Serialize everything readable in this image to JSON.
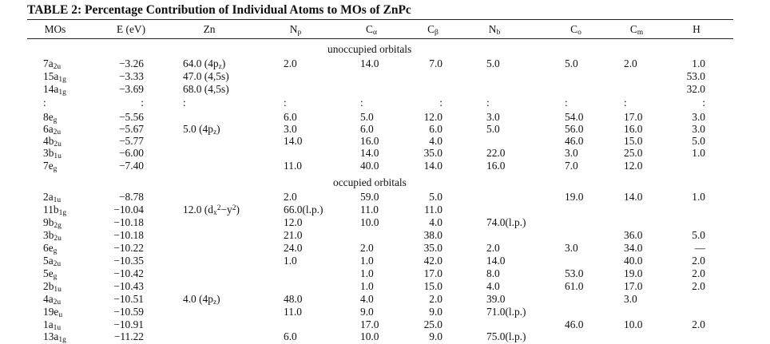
{
  "table": {
    "title": "TABLE 2: Percentage Contribution of Individual Atoms to MOs of ZnPc",
    "headers": [
      {
        "base": "MOs"
      },
      {
        "base": "E (eV)"
      },
      {
        "base": "Zn"
      },
      {
        "base": "N",
        "sub": "p"
      },
      {
        "base": "C",
        "sub": "α"
      },
      {
        "base": "C",
        "sub": "β"
      },
      {
        "base": "N",
        "sub": "b"
      },
      {
        "base": "C",
        "sub": "o"
      },
      {
        "base": "C",
        "sub": "m"
      },
      {
        "base": "H"
      }
    ],
    "sections": {
      "unoccupied": "unoccupied orbitals",
      "occupied": "occupied orbitals"
    },
    "rows": [
      {
        "mo": {
          "base": "7a",
          "sub": "2u"
        },
        "e": "−3.26",
        "zn": "64.0 (4p",
        "zn_sub": "z",
        "zn_tail": ")",
        "np": "2.0",
        "ca": "14.0",
        "cb": "7.0",
        "nb": "5.0",
        "co": "5.0",
        "cm": "2.0",
        "h": "1.0"
      },
      {
        "mo": {
          "base": "15a",
          "sub": "1g"
        },
        "e": "−3.33",
        "zn": "47.0 (4,5s)",
        "h": "53.0"
      },
      {
        "mo": {
          "base": "14a",
          "sub": "1g"
        },
        "e": "−3.69",
        "zn": "68.0 (4,5s)",
        "h": "32.0"
      },
      {
        "mo": {
          "base": ":"
        },
        "e": ":",
        "zn": ":",
        "np": ":",
        "ca": ":",
        "cb": ":",
        "nb": ":",
        "co": ":",
        "cm": ":",
        "h": ":"
      },
      {
        "mo": {
          "base": "8e",
          "sub": "g"
        },
        "e": "−5.56",
        "np": "6.0",
        "ca": "5.0",
        "cb": "12.0",
        "nb": "3.0",
        "co": "54.0",
        "cm": "17.0",
        "h": "3.0"
      },
      {
        "mo": {
          "base": "6a",
          "sub": "2u"
        },
        "e": "−5.67",
        "zn": "5.0 (4p",
        "zn_sub": "z",
        "zn_tail": ")",
        "np": "3.0",
        "ca": "6.0",
        "cb": "6.0",
        "nb": "5.0",
        "co": "56.0",
        "cm": "16.0",
        "h": "3.0"
      },
      {
        "mo": {
          "base": "4b",
          "sub": "2u"
        },
        "e": "−5.77",
        "np": "14.0",
        "ca": "16.0",
        "cb": "4.0",
        "co": "46.0",
        "cm": "15.0",
        "h": "5.0"
      },
      {
        "mo": {
          "base": "3b",
          "sub": "1u"
        },
        "e": "−6.00",
        "ca": "14.0",
        "cb": "35.0",
        "nb": "22.0",
        "co": "3.0",
        "cm": "25.0",
        "h": "1.0"
      },
      {
        "mo": {
          "base": "7e",
          "sub": "g"
        },
        "e": "−7.40",
        "np": "11.0",
        "ca": "40.0",
        "cb": "14.0",
        "nb": "16.0",
        "co": "7.0",
        "cm": "12.0"
      },
      {
        "mo": {
          "base": "2a",
          "sub": "1u"
        },
        "e": "−8.78",
        "np": "2.0",
        "ca": "59.0",
        "cb": "5.0",
        "co": "19.0",
        "cm": "14.0",
        "h": "1.0"
      },
      {
        "mo": {
          "base": "11b",
          "sub": "1g"
        },
        "e": "−10.04",
        "zn": "12.0 (d",
        "zn_sub": "x",
        "zn_sup": "2",
        "zn_mid": "−y",
        "zn_sup2": "2",
        "zn_tail": ")",
        "np": "66.0(l.p.)",
        "ca": "11.0",
        "cb": "11.0"
      },
      {
        "mo": {
          "base": "9b",
          "sub": "2g"
        },
        "e": "−10.18",
        "np": "12.0",
        "ca": "10.0",
        "cb": "4.0",
        "nb": "74.0(l.p.)"
      },
      {
        "mo": {
          "base": "3b",
          "sub": "2u"
        },
        "e": "−10.18",
        "np": "21.0",
        "cb": "38.0",
        "cm": "36.0",
        "h": "5.0"
      },
      {
        "mo": {
          "base": "6e",
          "sub": "g"
        },
        "e": "−10.22",
        "np": "24.0",
        "ca": "2.0",
        "cb": "35.0",
        "nb": "2.0",
        "co": "3.0",
        "cm": "34.0",
        "h": "—"
      },
      {
        "mo": {
          "base": "5a",
          "sub": "2u"
        },
        "e": "−10.35",
        "np": "1.0",
        "ca": "1.0",
        "cb": "42.0",
        "nb": "14.0",
        "cm": "40.0",
        "h": "2.0"
      },
      {
        "mo": {
          "base": "5e",
          "sub": "g"
        },
        "e": "−10.42",
        "ca": "1.0",
        "cb": "17.0",
        "nb": "8.0",
        "co": "53.0",
        "cm": "19.0",
        "h": "2.0"
      },
      {
        "mo": {
          "base": "2b",
          "sub": "1u"
        },
        "e": "−10.43",
        "ca": "1.0",
        "cb": "15.0",
        "nb": "4.0",
        "co": "61.0",
        "cm": "17.0",
        "h": "2.0"
      },
      {
        "mo": {
          "base": "4a",
          "sub": "2u"
        },
        "e": "−10.51",
        "zn": "4.0 (4p",
        "zn_sub": "z",
        "zn_tail": ")",
        "np": "48.0",
        "ca": "4.0",
        "cb": "2.0",
        "nb": "39.0",
        "cm": "3.0"
      },
      {
        "mo": {
          "base": "19e",
          "sub": "u"
        },
        "e": "−10.59",
        "np": "11.0",
        "ca": "9.0",
        "cb": "9.0",
        "nb": "71.0(l.p.)"
      },
      {
        "mo": {
          "base": "1a",
          "sub": "1u"
        },
        "e": "−10.91",
        "ca": "17.0",
        "cb": "25.0",
        "co": "46.0",
        "cm": "10.0",
        "h": "2.0"
      },
      {
        "mo": {
          "base": "13a",
          "sub": "1g"
        },
        "e": "−11.22",
        "np": "6.0",
        "ca": "10.0",
        "cb": "9.0",
        "nb": "75.0(l.p.)"
      }
    ]
  }
}
